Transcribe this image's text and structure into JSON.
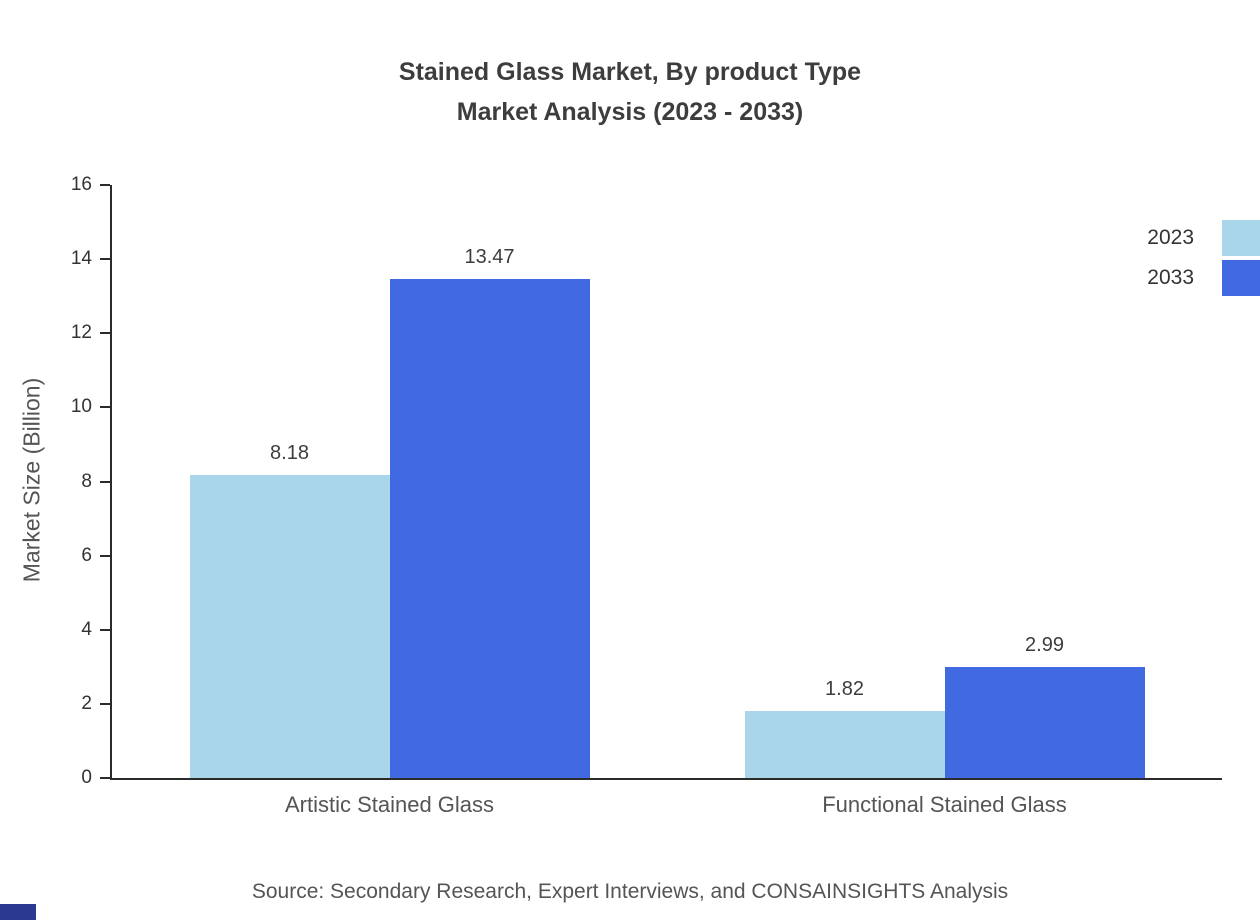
{
  "title": {
    "line1": "Stained Glass Market, By product Type",
    "line2": "Market Analysis (2023 - 2033)"
  },
  "source": "Source: Secondary Research, Expert Interviews, and CONSAINSIGHTS Analysis",
  "decor": {
    "corner_accent_color": "#2b3990"
  },
  "chart_data": {
    "type": "bar",
    "title": "Stained Glass Market, By product Type Market Analysis (2023 - 2033)",
    "categories": [
      "Artistic Stained Glass",
      "Functional Stained Glass"
    ],
    "series": [
      {
        "name": "2023",
        "color": "#a9d6e8",
        "values": [
          8.18,
          1.82
        ]
      },
      {
        "name": "2033",
        "color": "#4169e1",
        "values": [
          13.47,
          2.99
        ]
      }
    ],
    "xlabel": "",
    "ylabel": "Market Size (Billion)",
    "ylim": [
      0,
      16
    ],
    "yticks": [
      0,
      2,
      4,
      6,
      8,
      10,
      12,
      14,
      16
    ],
    "grid": false,
    "legend_position": "top-right"
  }
}
